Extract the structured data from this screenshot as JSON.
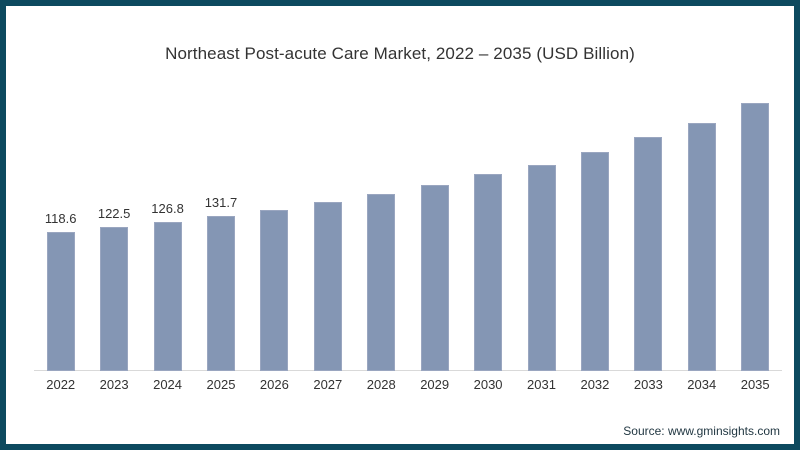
{
  "title": "Northeast Post-acute Care Market, 2022 – 2035 (USD Billion)",
  "source": "Source: www.gminsights.com",
  "frame": {
    "border_color": "#0d4a5f",
    "background": "#ffffff"
  },
  "chart_data": {
    "type": "bar",
    "title": "Northeast Post-acute Care Market, 2022 – 2035 (USD Billion)",
    "xlabel": "",
    "ylabel": "",
    "categories": [
      "2022",
      "2023",
      "2024",
      "2025",
      "2026",
      "2027",
      "2028",
      "2029",
      "2030",
      "2031",
      "2032",
      "2033",
      "2034",
      "2035"
    ],
    "values": [
      118.6,
      122.5,
      126.8,
      131.7,
      137.1,
      143.7,
      150.5,
      158.4,
      167.3,
      175.4,
      186.2,
      199.0,
      211.2,
      228.2
    ],
    "data_labels": [
      "118.6",
      "122.5",
      "126.8",
      "131.7",
      "",
      "",
      "",
      "",
      "",
      "",
      "",
      "",
      "",
      ""
    ],
    "ylim": [
      0,
      250
    ],
    "grid": false,
    "legend": false,
    "y_axis_visible": false,
    "bar_color": "#8496b4",
    "bar_edge_color": "#9aa6c0",
    "axis_line_color": "#d9d9d9",
    "label_color": "#333333"
  }
}
